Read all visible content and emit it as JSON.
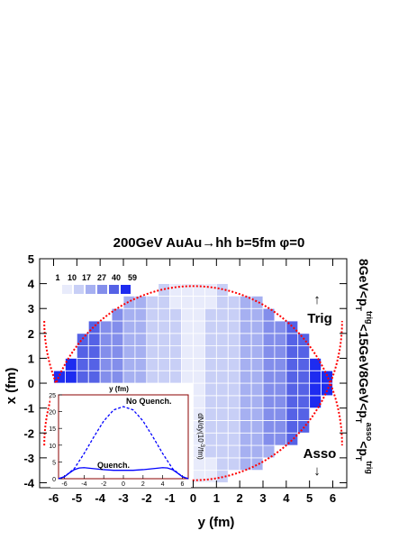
{
  "chart_data": {
    "type": "heatmap",
    "title": "200GeV  AuAu→hh  b=5fm  φ=0",
    "xlabel": "y (fm)",
    "ylabel": "x (fm)",
    "xlim": [
      -6.6,
      6.6
    ],
    "ylim": [
      -4.2,
      5.0
    ],
    "xticks": [
      "-6",
      "-5",
      "-4",
      "-3",
      "-2",
      "-1",
      "0",
      "1",
      "2",
      "3",
      "4",
      "5",
      "6"
    ],
    "yticks": [
      "-4",
      "-3",
      "-2",
      "-1",
      "0",
      "1",
      "2",
      "3",
      "4",
      "5"
    ],
    "grid_step_fm": 0.5,
    "legend": {
      "levels": [
        "1",
        "10",
        "17",
        "27",
        "40",
        "59"
      ],
      "colors": [
        "#e8ebfb",
        "#c8cff6",
        "#a6b0f1",
        "#838eeb",
        "#5562e6",
        "#1e2cf0"
      ]
    },
    "overlap_boundary": {
      "style": "dotted",
      "color": "#ff0000",
      "nucleus_radius_fm": 6.4,
      "impact_parameter_fm": 5,
      "orientation": "lens"
    },
    "annotations": {
      "trig": "Trig",
      "trig_arrow": "↑",
      "asso": "Asso",
      "asso_arrow": "↓"
    },
    "side_label": {
      "upper": "8GeV<p",
      "upper_sub": "T",
      "upper_sup": "trig",
      "upper_end": "<15GeV",
      "lower": "8GeV<p",
      "lower_sub": "T",
      "lower_sup": "asso",
      "lower_mid": "<p",
      "lower_sub2": "T",
      "lower_sup2": "trig"
    },
    "inset": {
      "type": "line",
      "xlabel": "y (fm)",
      "ylabel": "dN/dy(10",
      "ylabel_sup": "-3",
      "ylabel_end": "/fm)",
      "xlim": [
        -6.6,
        6.6
      ],
      "ylim": [
        0,
        25
      ],
      "xticks": [
        "-6",
        "-4",
        "-2",
        "0",
        "2",
        "4",
        "6"
      ],
      "yticks": [
        "0",
        "5",
        "10",
        "15",
        "20",
        "25"
      ],
      "series": [
        {
          "name": "No Quench.",
          "style": "dashed",
          "color": "#0000ff",
          "x": [
            -6.6,
            -6,
            -5,
            -4,
            -3,
            -2,
            -1,
            0,
            1,
            2,
            3,
            4,
            5,
            6,
            6.6
          ],
          "y": [
            0,
            0.6,
            3.0,
            7.5,
            12.5,
            17.2,
            20.5,
            21.5,
            20.5,
            17.2,
            12.5,
            7.5,
            3.0,
            0.6,
            0
          ]
        },
        {
          "name": "Quench.",
          "style": "solid",
          "color": "#0000ff",
          "x": [
            -6.6,
            -6,
            -5.5,
            -5,
            -4.5,
            -4,
            -3,
            -2,
            -1,
            0,
            1,
            2,
            3,
            4,
            4.5,
            5,
            5.5,
            6,
            6.6
          ],
          "y": [
            0,
            0.6,
            1.7,
            2.7,
            3.2,
            3.3,
            3.0,
            2.7,
            2.5,
            2.5,
            2.5,
            2.7,
            3.0,
            3.3,
            3.2,
            2.7,
            1.7,
            0.6,
            0
          ]
        }
      ]
    }
  }
}
